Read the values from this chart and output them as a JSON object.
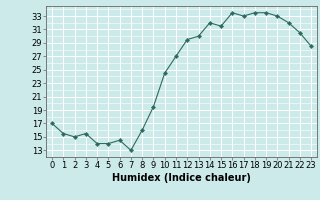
{
  "x": [
    0,
    1,
    2,
    3,
    4,
    5,
    6,
    7,
    8,
    9,
    10,
    11,
    12,
    13,
    14,
    15,
    16,
    17,
    18,
    19,
    20,
    21,
    22,
    23
  ],
  "y": [
    17,
    15.5,
    15,
    15.5,
    14,
    14,
    14.5,
    13,
    16,
    19.5,
    24.5,
    27,
    29.5,
    30,
    32,
    31.5,
    33.5,
    33,
    33.5,
    33.5,
    33,
    32,
    30.5,
    28.5
  ],
  "line_color": "#2d6b5e",
  "marker_color": "#2d6b5e",
  "bg_color": "#cceaea",
  "grid_color": "#ffffff",
  "xlabel": "Humidex (Indice chaleur)",
  "xlabel_fontsize": 7,
  "tick_fontsize": 6,
  "ylim": [
    12,
    34.5
  ],
  "xlim": [
    -0.5,
    23.5
  ],
  "yticks": [
    13,
    15,
    17,
    19,
    21,
    23,
    25,
    27,
    29,
    31,
    33
  ],
  "xticks": [
    0,
    1,
    2,
    3,
    4,
    5,
    6,
    7,
    8,
    9,
    10,
    11,
    12,
    13,
    14,
    15,
    16,
    17,
    18,
    19,
    20,
    21,
    22,
    23
  ]
}
